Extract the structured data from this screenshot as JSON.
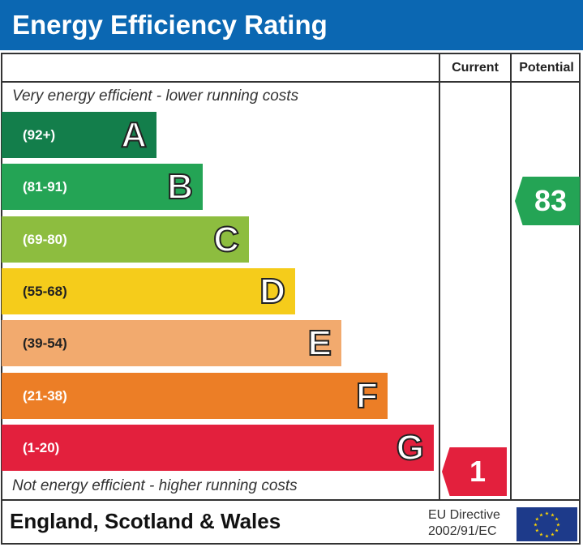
{
  "title": "Energy Efficiency Rating",
  "columns": {
    "current": "Current",
    "potential": "Potential"
  },
  "top_note": "Very energy efficient - lower running costs",
  "bottom_note": "Not energy efficient - higher running costs",
  "footer": {
    "region": "England, Scotland & Wales",
    "directive_line1": "EU Directive",
    "directive_line2": "2002/91/EC"
  },
  "chart_data": {
    "type": "bar",
    "title": "Energy Efficiency Rating",
    "categories": [
      "A",
      "B",
      "C",
      "D",
      "E",
      "F",
      "G"
    ],
    "ranges": [
      "(92+)",
      "(81-91)",
      "(69-80)",
      "(55-68)",
      "(39-54)",
      "(21-38)",
      "(1-20)"
    ],
    "colors": [
      "#137e4b",
      "#24a455",
      "#8dbd3f",
      "#f5cc1b",
      "#f2aa6e",
      "#ec7e26",
      "#e3203d"
    ],
    "current": {
      "value": 1,
      "band": "G",
      "color": "#e3203d",
      "label": "1"
    },
    "potential": {
      "value": 83,
      "band": "B",
      "color": "#24a455",
      "label": "83"
    }
  }
}
